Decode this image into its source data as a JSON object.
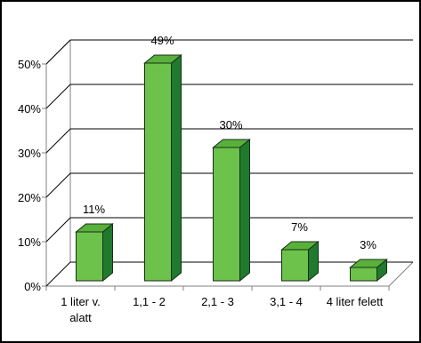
{
  "chart_data": {
    "type": "bar",
    "style": "3d-column",
    "title": "",
    "xlabel": "",
    "ylabel": "",
    "categories": [
      [
        "1 liter v.",
        "alatt"
      ],
      [
        "1,1 - 2"
      ],
      [
        "2,1 - 3"
      ],
      [
        "3,1 - 4"
      ],
      [
        "4 liter felett"
      ]
    ],
    "values": [
      11,
      49,
      30,
      7,
      3
    ],
    "data_labels": [
      "11%",
      "49%",
      "30%",
      "7%",
      "3%"
    ],
    "ylim": [
      0,
      50
    ],
    "yticks": [
      0,
      10,
      20,
      30,
      40,
      50
    ],
    "ytick_labels": [
      "0%",
      "10%",
      "20%",
      "30%",
      "40%",
      "50%"
    ],
    "grid": true,
    "legend": "none",
    "colors": {
      "bar_front": "#6cc24a",
      "bar_top": "#58b13a",
      "bar_side": "#1f7a2e",
      "bar_outline": "#1a2e1a",
      "grid": "#000000",
      "frame": "#000000"
    }
  }
}
